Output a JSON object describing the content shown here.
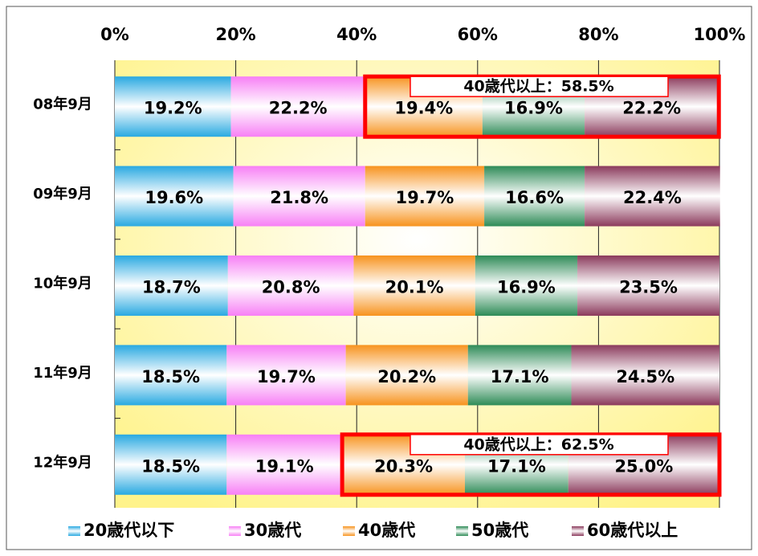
{
  "chart_data": {
    "type": "stacked-bar-horizontal",
    "categories": [
      "08年9月",
      "09年9月",
      "10年9月",
      "11年9月",
      "12年9月"
    ],
    "xlim": [
      0,
      100
    ],
    "xticks": [
      {
        "value": 0,
        "label": "0%"
      },
      {
        "value": 20,
        "label": "20%"
      },
      {
        "value": 40,
        "label": "40%"
      },
      {
        "value": 60,
        "label": "60%"
      },
      {
        "value": 80,
        "label": "80%"
      },
      {
        "value": 100,
        "label": "100%"
      }
    ],
    "grid": true,
    "legend": "bottom",
    "series": [
      {
        "name": "20歳代以下",
        "color": "#29a9e1",
        "values": [
          19.2,
          19.6,
          18.7,
          18.5,
          18.5
        ],
        "value_labels": [
          "19.2%",
          "19.6%",
          "18.7%",
          "18.5%",
          "18.5%"
        ]
      },
      {
        "name": "30歳代",
        "color": "#f77ff5",
        "values": [
          22.2,
          21.8,
          20.8,
          19.7,
          19.1
        ],
        "value_labels": [
          "22.2%",
          "21.8%",
          "20.8%",
          "19.7%",
          "19.1%"
        ]
      },
      {
        "name": "40歳代",
        "color": "#f7931e",
        "values": [
          19.4,
          19.7,
          20.1,
          20.2,
          20.3
        ],
        "value_labels": [
          "19.4%",
          "19.7%",
          "20.1%",
          "20.2%",
          "20.3%"
        ]
      },
      {
        "name": "50歳代",
        "color": "#2e8b57",
        "values": [
          16.9,
          16.6,
          16.9,
          17.1,
          17.1
        ],
        "value_labels": [
          "16.9%",
          "16.6%",
          "16.9%",
          "17.1%",
          "17.1%"
        ]
      },
      {
        "name": "60歳代以上",
        "color": "#8b3a5c",
        "values": [
          22.2,
          22.4,
          23.5,
          24.5,
          25.0
        ],
        "value_labels": [
          "22.2%",
          "22.4%",
          "23.5%",
          "24.5%",
          "25.0%"
        ]
      }
    ],
    "annotations": [
      {
        "text": "40歳代以上：58.5%",
        "category": "08年9月"
      },
      {
        "text": "40歳代以上：62.5%",
        "category": "12年9月"
      }
    ]
  }
}
